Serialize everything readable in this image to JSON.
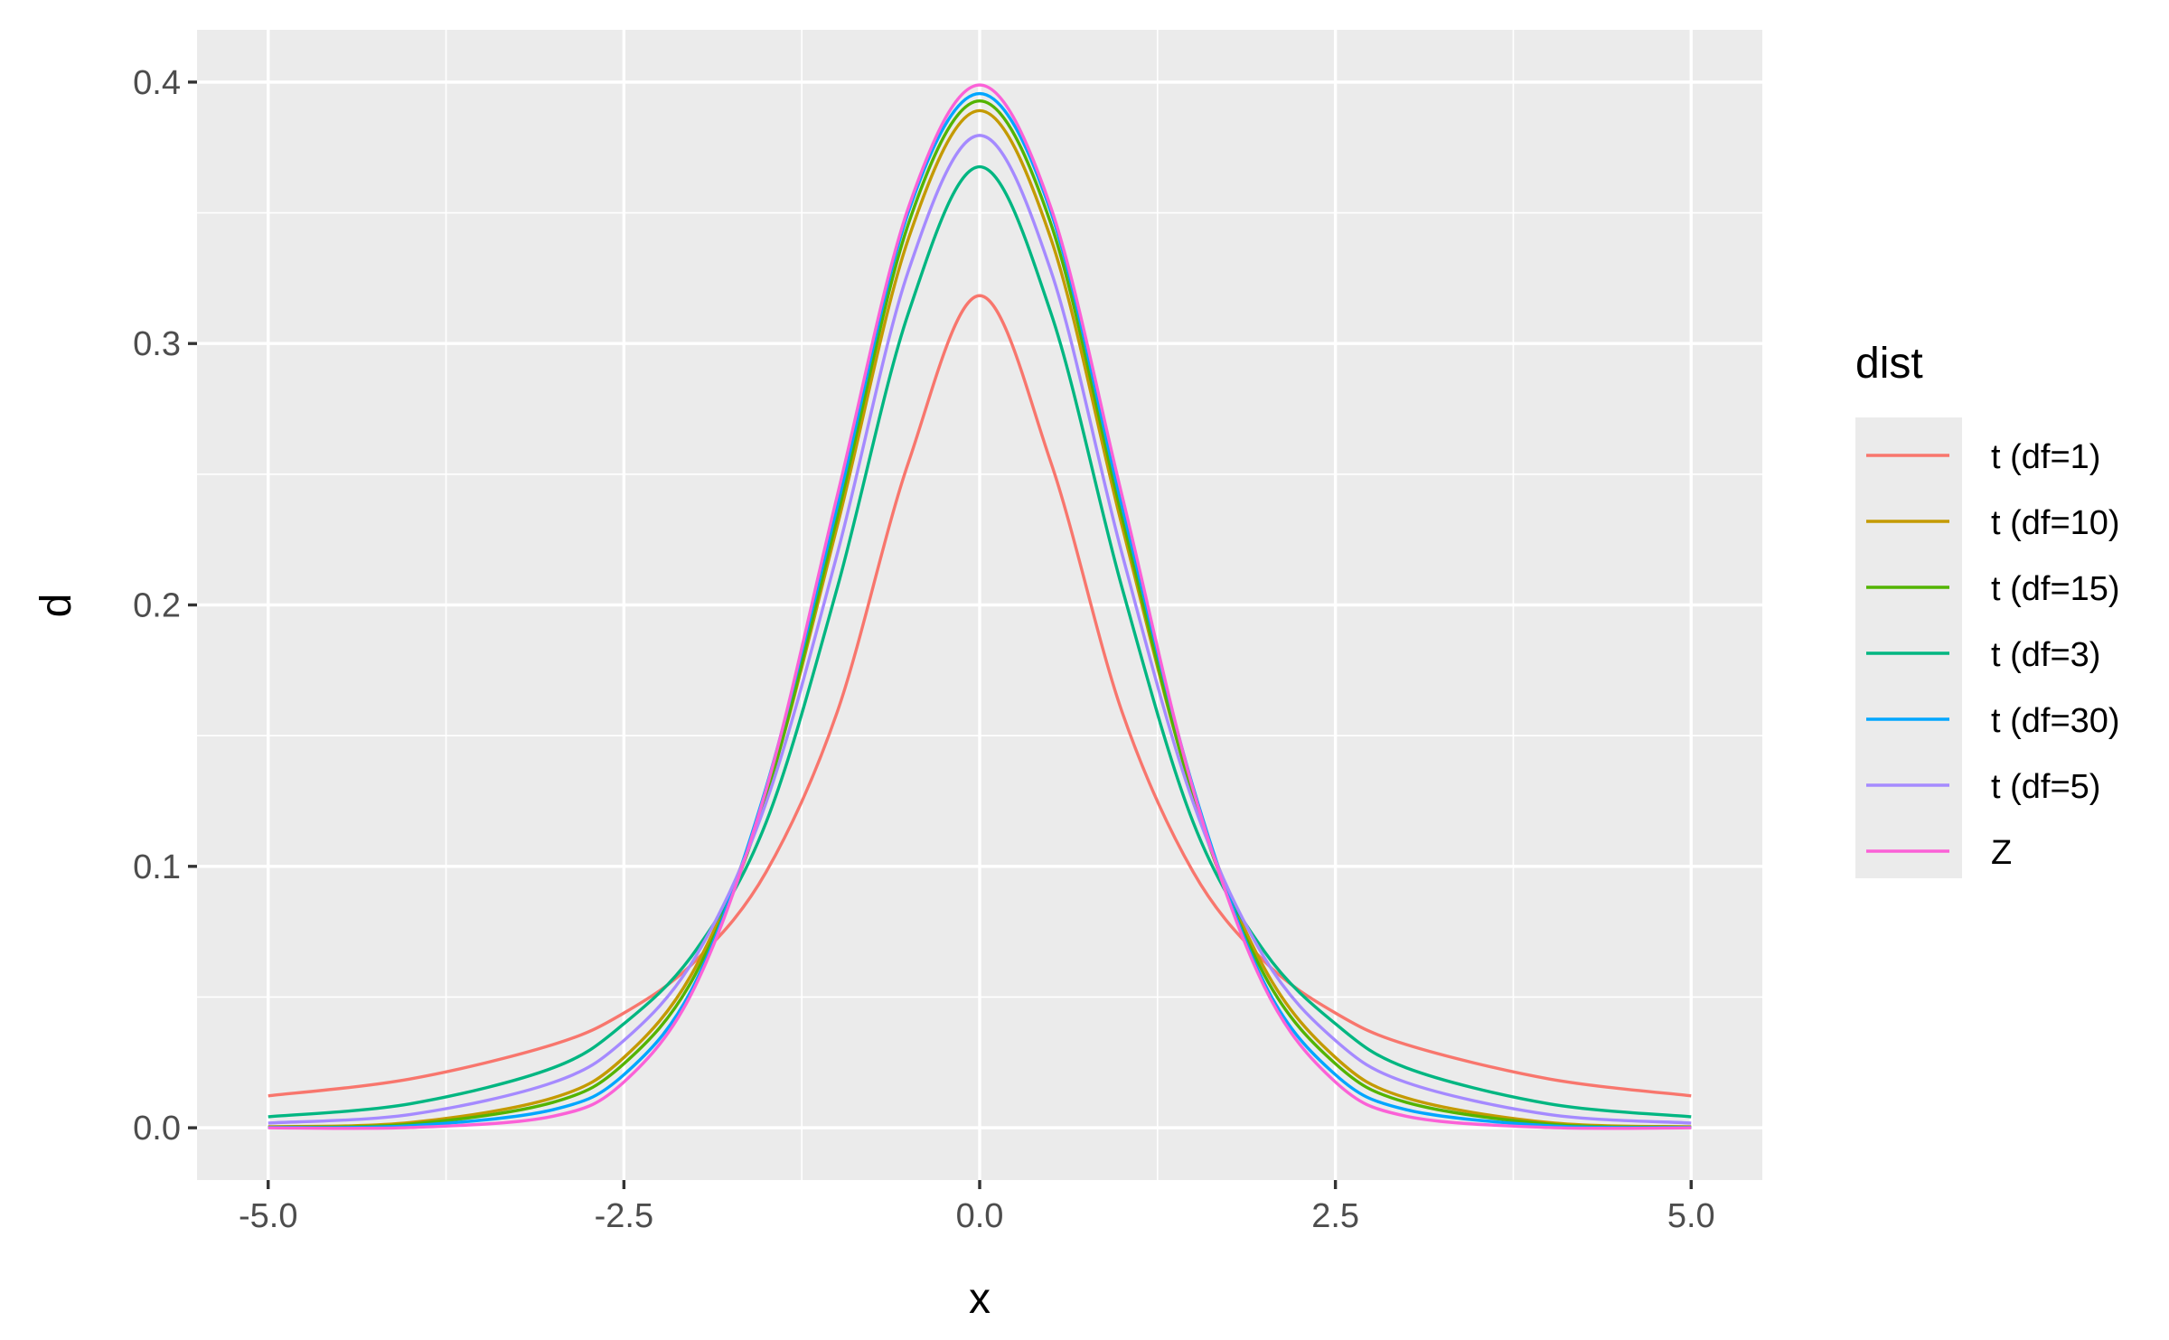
{
  "chart_data": {
    "type": "line",
    "title": "",
    "xlabel": "x",
    "ylabel": "d",
    "xlim": [
      -5.0,
      5.0
    ],
    "ylim": [
      0.0,
      0.4
    ],
    "x_ticks": [
      "-5.0",
      "-2.5",
      "0.0",
      "2.5",
      "5.0"
    ],
    "x_tick_values": [
      -5.0,
      -2.5,
      0.0,
      2.5,
      5.0
    ],
    "y_ticks": [
      "0.0",
      "0.1",
      "0.2",
      "0.3",
      "0.4"
    ],
    "y_tick_values": [
      0.0,
      0.1,
      0.2,
      0.3,
      0.4
    ],
    "grid": true,
    "legend": {
      "title": "dist",
      "placement": "right"
    },
    "series": [
      {
        "name": "t (df=1)",
        "color": "#F8766D",
        "x": [
          -5,
          -4,
          -3,
          -2.5,
          -2,
          -1.5,
          -1,
          -0.5,
          0,
          0.5,
          1,
          1.5,
          2,
          2.5,
          3,
          4,
          5
        ],
        "values": [
          0.0122,
          0.0187,
          0.0318,
          0.0439,
          0.0637,
          0.0979,
          0.1592,
          0.2546,
          0.3183,
          0.2546,
          0.1592,
          0.0979,
          0.0637,
          0.0439,
          0.0318,
          0.0187,
          0.0122
        ]
      },
      {
        "name": "t (df=10)",
        "color": "#C49A00",
        "x": [
          -5,
          -4,
          -3,
          -2.5,
          -2,
          -1.5,
          -1,
          -0.5,
          0,
          0.5,
          1,
          1.5,
          2,
          2.5,
          3,
          4,
          5
        ],
        "values": [
          0.0004,
          0.002,
          0.0114,
          0.0269,
          0.0611,
          0.1274,
          0.2304,
          0.3402,
          0.3891,
          0.3402,
          0.2304,
          0.1274,
          0.0611,
          0.0269,
          0.0114,
          0.002,
          0.0004
        ]
      },
      {
        "name": "t (df=15)",
        "color": "#53B400",
        "x": [
          -5,
          -4,
          -3,
          -2.5,
          -2,
          -1.5,
          -1,
          -0.5,
          0,
          0.5,
          1,
          1.5,
          2,
          2.5,
          3,
          4,
          5
        ],
        "values": [
          0.0002,
          0.0014,
          0.0097,
          0.0245,
          0.0585,
          0.1268,
          0.2339,
          0.3459,
          0.3928,
          0.3459,
          0.2339,
          0.1268,
          0.0585,
          0.0245,
          0.0097,
          0.0014,
          0.0002
        ]
      },
      {
        "name": "t (df=3)",
        "color": "#00B681",
        "x": [
          -5,
          -4,
          -3,
          -2.5,
          -2,
          -1.5,
          -1,
          -0.5,
          0,
          0.5,
          1,
          1.5,
          2,
          2.5,
          3,
          4,
          5
        ],
        "values": [
          0.0042,
          0.0092,
          0.0229,
          0.0398,
          0.0675,
          0.1169,
          0.2067,
          0.3118,
          0.3676,
          0.3118,
          0.2067,
          0.1169,
          0.0675,
          0.0398,
          0.0229,
          0.0092,
          0.0042
        ]
      },
      {
        "name": "t (df=30)",
        "color": "#00A6FF",
        "x": [
          -5,
          -4,
          -3,
          -2.5,
          -2,
          -1.5,
          -1,
          -0.5,
          0,
          0.5,
          1,
          1.5,
          2,
          2.5,
          3,
          4,
          5
        ],
        "values": [
          0.0001,
          0.0008,
          0.0069,
          0.0203,
          0.0554,
          0.1303,
          0.2378,
          0.3504,
          0.3956,
          0.3504,
          0.2378,
          0.1303,
          0.0554,
          0.0203,
          0.0069,
          0.0008,
          0.0001
        ]
      },
      {
        "name": "t (df=5)",
        "color": "#A58AFF",
        "x": [
          -5,
          -4,
          -3,
          -2.5,
          -2,
          -1.5,
          -1,
          -0.5,
          0,
          0.5,
          1,
          1.5,
          2,
          2.5,
          3,
          4,
          5
        ],
        "values": [
          0.0018,
          0.0051,
          0.0173,
          0.0334,
          0.0651,
          0.1245,
          0.2197,
          0.3279,
          0.3796,
          0.3279,
          0.2197,
          0.1245,
          0.0651,
          0.0334,
          0.0173,
          0.0051,
          0.0018
        ]
      },
      {
        "name": "Z",
        "color": "#FB61D7",
        "x": [
          -5,
          -4,
          -3,
          -2.5,
          -2,
          -1.5,
          -1,
          -0.5,
          0,
          0.5,
          1,
          1.5,
          2,
          2.5,
          3,
          4,
          5
        ],
        "values": [
          0.0,
          0.0001,
          0.0044,
          0.0175,
          0.054,
          0.1295,
          0.242,
          0.3521,
          0.3989,
          0.3521,
          0.242,
          0.1295,
          0.054,
          0.0175,
          0.0044,
          0.0001,
          0.0
        ]
      }
    ]
  }
}
